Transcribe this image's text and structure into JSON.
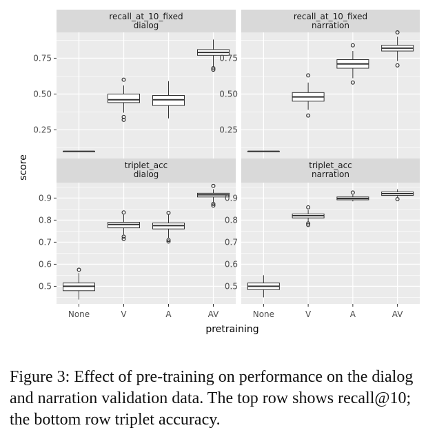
{
  "chart_data": {
    "type": "boxplot",
    "xlabel": "pretraining",
    "ylabel": "score",
    "categories": [
      "None",
      "V",
      "A",
      "AV"
    ],
    "colors": {
      "panel_bg": "#ebebeb",
      "strip_bg": "#d9d9d9",
      "grid": "#ffffff",
      "box_line": "#333333",
      "box_fill": "#ffffff"
    },
    "rows": [
      {
        "metric": "recall",
        "ylim": [
          0.05,
          0.93
        ],
        "yticks": [
          0.25,
          0.5,
          0.75
        ],
        "yticklabels": [
          "0.25",
          "0.50",
          "0.75"
        ],
        "panels": [
          {
            "strip": [
              "recall_at_10_fixed",
              "dialog"
            ],
            "boxes": [
              {
                "category": "None",
                "min": 0.1,
                "q1": 0.1,
                "median": 0.1,
                "q3": 0.1,
                "max": 0.1,
                "outliers": []
              },
              {
                "category": "V",
                "min": 0.37,
                "q1": 0.44,
                "median": 0.46,
                "q3": 0.5,
                "max": 0.56,
                "outliers": [
                  0.6,
                  0.34,
                  0.32
                ]
              },
              {
                "category": "A",
                "min": 0.33,
                "q1": 0.42,
                "median": 0.46,
                "q3": 0.49,
                "max": 0.59,
                "outliers": []
              },
              {
                "category": "AV",
                "min": 0.69,
                "q1": 0.77,
                "median": 0.79,
                "q3": 0.81,
                "max": 0.88,
                "outliers": [
                  0.68,
                  0.67
                ]
              }
            ]
          },
          {
            "strip": [
              "recall_at_10_fixed",
              "narration"
            ],
            "boxes": [
              {
                "category": "None",
                "min": 0.1,
                "q1": 0.1,
                "median": 0.1,
                "q3": 0.1,
                "max": 0.1,
                "outliers": []
              },
              {
                "category": "V",
                "min": 0.39,
                "q1": 0.45,
                "median": 0.48,
                "q3": 0.51,
                "max": 0.58,
                "outliers": [
                  0.63,
                  0.35
                ]
              },
              {
                "category": "A",
                "min": 0.61,
                "q1": 0.68,
                "median": 0.71,
                "q3": 0.74,
                "max": 0.8,
                "outliers": [
                  0.84,
                  0.58
                ]
              },
              {
                "category": "AV",
                "min": 0.73,
                "q1": 0.8,
                "median": 0.82,
                "q3": 0.84,
                "max": 0.9,
                "outliers": [
                  0.93,
                  0.7
                ]
              }
            ]
          }
        ]
      },
      {
        "metric": "triplet",
        "ylim": [
          0.42,
          0.97
        ],
        "yticks": [
          0.5,
          0.6,
          0.7,
          0.8,
          0.9
        ],
        "yticklabels": [
          "0.5",
          "0.6",
          "0.7",
          "0.8",
          "0.9"
        ],
        "panels": [
          {
            "strip": [
              "triplet_acc",
              "dialog"
            ],
            "boxes": [
              {
                "category": "None",
                "min": 0.44,
                "q1": 0.48,
                "median": 0.5,
                "q3": 0.515,
                "max": 0.56,
                "outliers": [
                  0.575
                ]
              },
              {
                "category": "V",
                "min": 0.735,
                "q1": 0.765,
                "median": 0.78,
                "q3": 0.79,
                "max": 0.825,
                "outliers": [
                  0.835,
                  0.725,
                  0.715
                ]
              },
              {
                "category": "A",
                "min": 0.72,
                "q1": 0.76,
                "median": 0.775,
                "q3": 0.787,
                "max": 0.825,
                "outliers": [
                  0.833,
                  0.71,
                  0.703
                ]
              },
              {
                "category": "AV",
                "min": 0.88,
                "q1": 0.905,
                "median": 0.915,
                "q3": 0.922,
                "max": 0.94,
                "outliers": [
                  0.955,
                  0.873,
                  0.866
                ]
              }
            ]
          },
          {
            "strip": [
              "triplet_acc",
              "narration"
            ],
            "boxes": [
              {
                "category": "None",
                "min": 0.45,
                "q1": 0.485,
                "median": 0.5,
                "q3": 0.515,
                "max": 0.55,
                "outliers": []
              },
              {
                "category": "V",
                "min": 0.79,
                "q1": 0.81,
                "median": 0.82,
                "q3": 0.828,
                "max": 0.845,
                "outliers": [
                  0.858,
                  0.785,
                  0.778
                ]
              },
              {
                "category": "A",
                "min": 0.885,
                "q1": 0.892,
                "median": 0.898,
                "q3": 0.905,
                "max": 0.915,
                "outliers": [
                  0.925
                ]
              },
              {
                "category": "AV",
                "min": 0.905,
                "q1": 0.912,
                "median": 0.92,
                "q3": 0.928,
                "max": 0.94,
                "outliers": [
                  0.895
                ]
              }
            ]
          }
        ]
      }
    ]
  },
  "caption": {
    "text": "Figure 3: Effect of pre-training on performance on the dialog and narration validation data. The top row shows recall@10; the bottom row triplet accuracy."
  }
}
